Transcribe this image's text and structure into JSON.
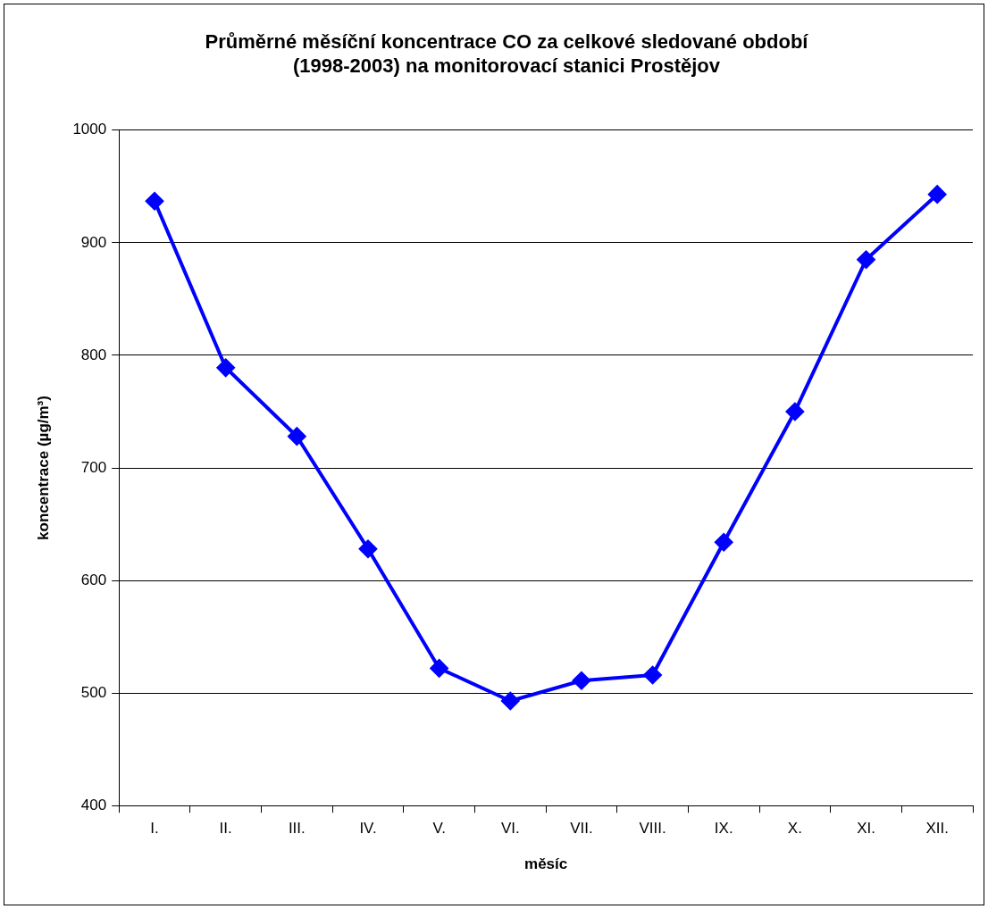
{
  "chart_data": {
    "type": "line",
    "title": "Průměrné měsíční koncentrace CO za celkové sledované období (1998-2003) na monitorovací stanici Prostějov",
    "xlabel": "měsíc",
    "ylabel": "koncentrace (µg/m³)",
    "categories": [
      "I.",
      "II.",
      "III.",
      "IV.",
      "V.",
      "VI.",
      "VII.",
      "VIII.",
      "IX.",
      "X.",
      "XI.",
      "XII."
    ],
    "series": [
      {
        "color": "#0000ff",
        "values": [
          937,
          789,
          728,
          628,
          522,
          493,
          511,
          516,
          634,
          750,
          885,
          943
        ]
      }
    ],
    "ylim": [
      400,
      1000
    ],
    "yticks": [
      400,
      500,
      600,
      700,
      800,
      900,
      1000
    ],
    "grid": "y",
    "legend": false,
    "marker": "diamond",
    "line_style": "solid"
  }
}
